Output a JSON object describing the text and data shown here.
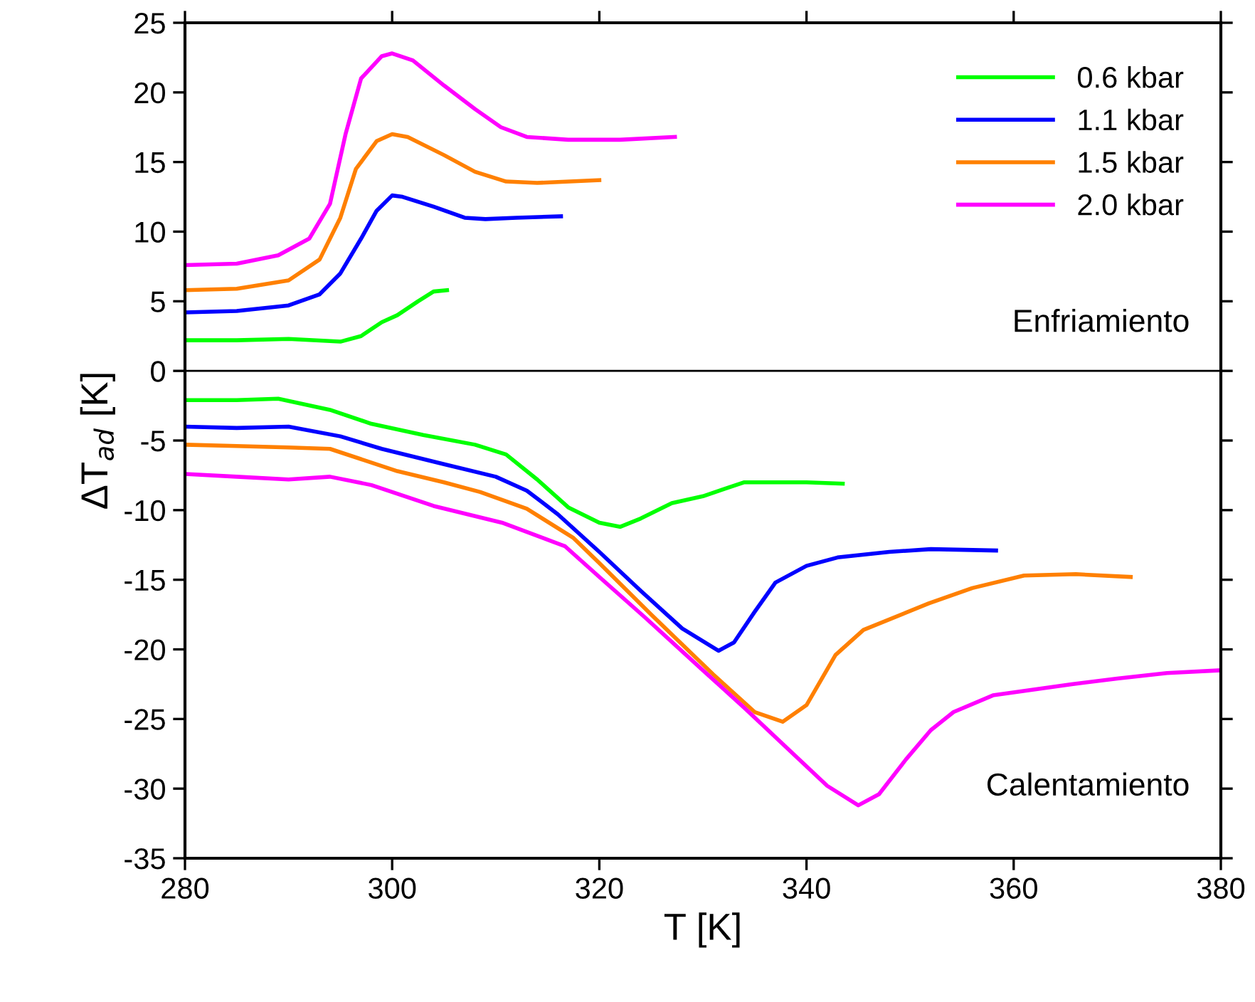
{
  "chart_data": {
    "type": "line",
    "xlabel": "T [K]",
    "ylabel": "ΔT$_{ad}$ [K]",
    "xlim": [
      280,
      380
    ],
    "xticks": [
      280,
      300,
      320,
      340,
      360,
      380
    ],
    "ylim": [
      -35,
      25
    ],
    "yticks": [
      -35,
      -30,
      -25,
      -20,
      -15,
      -10,
      -5,
      0,
      5,
      10,
      15,
      20,
      25
    ],
    "grid": false,
    "legend": "top right",
    "marker": "none",
    "line_style": "solid",
    "ref_lines": [
      {
        "axis": "y",
        "value": 0,
        "color": "#000000"
      }
    ],
    "annotations": [
      "Enfriamiento",
      "Calentamiento"
    ],
    "series": [
      {
        "name": "0.6 kbar",
        "color": "#00ff00",
        "x": [
          280,
          285,
          290,
          295,
          297,
          299,
          300.5,
          302.5,
          304,
          305.3
        ],
        "values": [
          2.2,
          2.2,
          2.3,
          2.1,
          2.5,
          3.5,
          4.0,
          5.0,
          5.7,
          5.8
        ]
      },
      {
        "name": "1.1 kbar",
        "color": "#0000ff",
        "x": [
          280,
          285,
          290,
          293,
          295,
          297,
          298.5,
          300,
          301,
          304,
          307,
          309,
          312,
          316.3
        ],
        "values": [
          4.2,
          4.3,
          4.7,
          5.5,
          7.0,
          9.5,
          11.5,
          12.6,
          12.5,
          11.8,
          11.0,
          10.9,
          11.0,
          11.1
        ]
      },
      {
        "name": "1.5 kbar",
        "color": "#ff8000",
        "x": [
          280,
          285,
          290,
          293,
          295,
          296.5,
          298.5,
          300,
          301.5,
          305,
          308,
          311,
          314,
          320
        ],
        "values": [
          5.8,
          5.9,
          6.5,
          8.0,
          11.0,
          14.5,
          16.5,
          17.0,
          16.8,
          15.5,
          14.3,
          13.6,
          13.5,
          13.7
        ]
      },
      {
        "name": "2.0 kbar",
        "color": "#ff00ff",
        "x": [
          280,
          285,
          289,
          292,
          294,
          295.5,
          297,
          299,
          300,
          302,
          305,
          308,
          310.5,
          313,
          317,
          322,
          327.3
        ],
        "values": [
          7.6,
          7.7,
          8.3,
          9.5,
          12.0,
          17.0,
          21.0,
          22.6,
          22.8,
          22.3,
          20.5,
          18.8,
          17.5,
          16.8,
          16.6,
          16.6,
          16.8
        ]
      },
      {
        "color": "#00ff00",
        "x": [
          280,
          285,
          289,
          294,
          298,
          303,
          308,
          311,
          314,
          317,
          320,
          322,
          324,
          327,
          330,
          332,
          334,
          340,
          343.5
        ],
        "values": [
          -2.1,
          -2.1,
          -2.0,
          -2.8,
          -3.8,
          -4.6,
          -5.3,
          -6.0,
          -7.8,
          -9.8,
          -10.9,
          -11.2,
          -10.6,
          -9.5,
          -9.0,
          -8.5,
          -8.0,
          -8.0,
          -8.1
        ]
      },
      {
        "color": "#0000ff",
        "x": [
          280,
          285,
          290,
          295,
          299,
          305,
          310,
          313,
          316,
          320,
          324,
          328,
          331.5,
          333,
          335,
          337,
          340,
          343,
          348,
          352,
          358.3
        ],
        "values": [
          -4.0,
          -4.1,
          -4.0,
          -4.7,
          -5.6,
          -6.7,
          -7.6,
          -8.6,
          -10.3,
          -13.0,
          -15.8,
          -18.5,
          -20.1,
          -19.5,
          -17.3,
          -15.2,
          -14.0,
          -13.4,
          -13.0,
          -12.8,
          -12.9
        ]
      },
      {
        "color": "#ff8000",
        "x": [
          280,
          285,
          290,
          294,
          300.5,
          305,
          308.5,
          313,
          317.5,
          320,
          325,
          331,
          335,
          337.7,
          340,
          342.8,
          345.5,
          351.8,
          356,
          361,
          366,
          371.3
        ],
        "values": [
          -5.3,
          -5.4,
          -5.5,
          -5.6,
          -7.2,
          -8.0,
          -8.7,
          -9.9,
          -12.0,
          -13.8,
          -17.5,
          -21.8,
          -24.5,
          -25.2,
          -24.0,
          -20.4,
          -18.6,
          -16.7,
          -15.6,
          -14.7,
          -14.6,
          -14.8
        ]
      },
      {
        "color": "#ff00ff",
        "x": [
          280,
          285,
          290,
          294,
          298,
          304,
          310.6,
          316.7,
          320,
          324.4,
          330,
          334,
          338,
          342,
          345,
          347,
          349.6,
          352,
          354.2,
          358,
          365.6,
          370,
          374.8,
          380
        ],
        "values": [
          -7.4,
          -7.6,
          -7.8,
          -7.6,
          -8.2,
          -9.7,
          -10.9,
          -12.6,
          -14.8,
          -17.7,
          -21.5,
          -24.2,
          -27.0,
          -29.8,
          -31.2,
          -30.4,
          -27.9,
          -25.8,
          -24.5,
          -23.3,
          -22.5,
          -22.1,
          -21.7,
          -21.5
        ]
      }
    ]
  }
}
